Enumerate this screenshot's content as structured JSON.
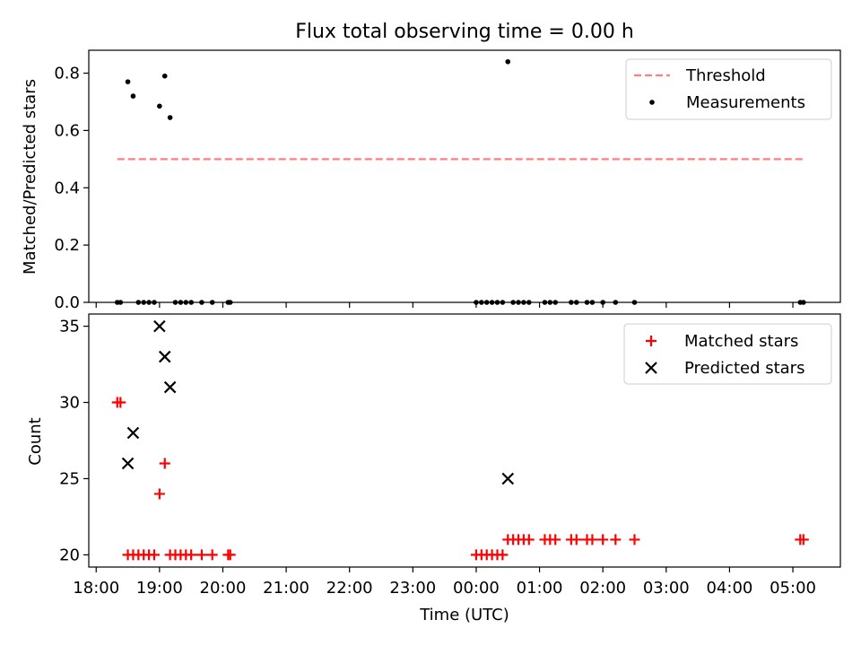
{
  "chart_data": [
    {
      "type": "scatter",
      "title": "Flux total observing time = 0.00 h",
      "xlabel": "",
      "ylabel": "Matched/Predicted stars",
      "xlim": [
        "17:53",
        "05:45"
      ],
      "ylim": [
        0,
        0.88
      ],
      "yticks": [
        0.0,
        0.2,
        0.4,
        0.6,
        0.8
      ],
      "ytick_labels": [
        "0.0",
        "0.2",
        "0.4",
        "0.6",
        "0.8"
      ],
      "grid": false,
      "legend_position": "top-right",
      "legend": [
        {
          "label": "Threshold",
          "style": "dashed-line",
          "color": "#ff7f7f"
        },
        {
          "label": "Measurements",
          "style": "dot",
          "color": "#000000"
        }
      ],
      "threshold": {
        "name": "Threshold",
        "y": 0.5,
        "x_start": "18:20",
        "x_end": "05:10",
        "color": "#ff7f7f"
      },
      "series": [
        {
          "name": "Measurements",
          "marker": "dot",
          "color": "#000000",
          "points": [
            {
              "x": "18:20",
              "y": 0.0
            },
            {
              "x": "18:23",
              "y": 0.0
            },
            {
              "x": "18:30",
              "y": 0.77
            },
            {
              "x": "18:35",
              "y": 0.72
            },
            {
              "x": "18:40",
              "y": 0.0
            },
            {
              "x": "18:45",
              "y": 0.0
            },
            {
              "x": "18:50",
              "y": 0.0
            },
            {
              "x": "18:55",
              "y": 0.0
            },
            {
              "x": "19:00",
              "y": 0.685
            },
            {
              "x": "19:05",
              "y": 0.79
            },
            {
              "x": "19:10",
              "y": 0.645
            },
            {
              "x": "19:15",
              "y": 0.0
            },
            {
              "x": "19:20",
              "y": 0.0
            },
            {
              "x": "19:25",
              "y": 0.0
            },
            {
              "x": "19:30",
              "y": 0.0
            },
            {
              "x": "19:40",
              "y": 0.0
            },
            {
              "x": "19:50",
              "y": 0.0
            },
            {
              "x": "20:05",
              "y": 0.0
            },
            {
              "x": "20:07",
              "y": 0.0
            },
            {
              "x": "00:00",
              "y": 0.0
            },
            {
              "x": "00:05",
              "y": 0.0
            },
            {
              "x": "00:10",
              "y": 0.0
            },
            {
              "x": "00:15",
              "y": 0.0
            },
            {
              "x": "00:20",
              "y": 0.0
            },
            {
              "x": "00:25",
              "y": 0.0
            },
            {
              "x": "00:30",
              "y": 0.84
            },
            {
              "x": "00:35",
              "y": 0.0
            },
            {
              "x": "00:40",
              "y": 0.0
            },
            {
              "x": "00:45",
              "y": 0.0
            },
            {
              "x": "00:50",
              "y": 0.0
            },
            {
              "x": "01:05",
              "y": 0.0
            },
            {
              "x": "01:10",
              "y": 0.0
            },
            {
              "x": "01:15",
              "y": 0.0
            },
            {
              "x": "01:30",
              "y": 0.0
            },
            {
              "x": "01:35",
              "y": 0.0
            },
            {
              "x": "01:45",
              "y": 0.0
            },
            {
              "x": "01:50",
              "y": 0.0
            },
            {
              "x": "02:00",
              "y": 0.0
            },
            {
              "x": "02:12",
              "y": 0.0
            },
            {
              "x": "02:30",
              "y": 0.0
            },
            {
              "x": "05:07",
              "y": 0.0
            },
            {
              "x": "05:10",
              "y": 0.0
            }
          ]
        }
      ]
    },
    {
      "type": "scatter",
      "title": "",
      "xlabel": "Time (UTC)",
      "ylabel": "Count",
      "xlim": [
        "17:53",
        "05:45"
      ],
      "ylim": [
        19.2,
        35.8
      ],
      "yticks": [
        20,
        25,
        30,
        35
      ],
      "ytick_labels": [
        "20",
        "25",
        "30",
        "35"
      ],
      "xticks": [
        "18:00",
        "19:00",
        "20:00",
        "21:00",
        "22:00",
        "23:00",
        "00:00",
        "01:00",
        "02:00",
        "03:00",
        "04:00",
        "05:00"
      ],
      "grid": false,
      "legend_position": "top-right",
      "legend": [
        {
          "label": "Matched stars",
          "style": "plus",
          "color": "#ff0000"
        },
        {
          "label": "Predicted stars",
          "style": "cross",
          "color": "#000000"
        }
      ],
      "series": [
        {
          "name": "Matched stars",
          "marker": "plus",
          "color": "#ff0000",
          "points": [
            {
              "x": "18:20",
              "y": 30
            },
            {
              "x": "18:23",
              "y": 30
            },
            {
              "x": "18:30",
              "y": 20
            },
            {
              "x": "18:35",
              "y": 20
            },
            {
              "x": "18:40",
              "y": 20
            },
            {
              "x": "18:45",
              "y": 20
            },
            {
              "x": "18:50",
              "y": 20
            },
            {
              "x": "18:55",
              "y": 20
            },
            {
              "x": "19:00",
              "y": 24
            },
            {
              "x": "19:05",
              "y": 26
            },
            {
              "x": "19:10",
              "y": 20
            },
            {
              "x": "19:15",
              "y": 20
            },
            {
              "x": "19:20",
              "y": 20
            },
            {
              "x": "19:25",
              "y": 20
            },
            {
              "x": "19:30",
              "y": 20
            },
            {
              "x": "19:40",
              "y": 20
            },
            {
              "x": "19:50",
              "y": 20
            },
            {
              "x": "20:05",
              "y": 20
            },
            {
              "x": "20:07",
              "y": 20
            },
            {
              "x": "00:00",
              "y": 20
            },
            {
              "x": "00:05",
              "y": 20
            },
            {
              "x": "00:10",
              "y": 20
            },
            {
              "x": "00:15",
              "y": 20
            },
            {
              "x": "00:20",
              "y": 20
            },
            {
              "x": "00:25",
              "y": 20
            },
            {
              "x": "00:30",
              "y": 21
            },
            {
              "x": "00:35",
              "y": 21
            },
            {
              "x": "00:40",
              "y": 21
            },
            {
              "x": "00:45",
              "y": 21
            },
            {
              "x": "00:50",
              "y": 21
            },
            {
              "x": "01:05",
              "y": 21
            },
            {
              "x": "01:10",
              "y": 21
            },
            {
              "x": "01:15",
              "y": 21
            },
            {
              "x": "01:30",
              "y": 21
            },
            {
              "x": "01:35",
              "y": 21
            },
            {
              "x": "01:45",
              "y": 21
            },
            {
              "x": "01:50",
              "y": 21
            },
            {
              "x": "02:00",
              "y": 21
            },
            {
              "x": "02:12",
              "y": 21
            },
            {
              "x": "02:30",
              "y": 21
            },
            {
              "x": "05:07",
              "y": 21
            },
            {
              "x": "05:10",
              "y": 21
            }
          ]
        },
        {
          "name": "Predicted stars",
          "marker": "cross",
          "color": "#000000",
          "points": [
            {
              "x": "18:30",
              "y": 26
            },
            {
              "x": "18:35",
              "y": 28
            },
            {
              "x": "19:00",
              "y": 35
            },
            {
              "x": "19:05",
              "y": 33
            },
            {
              "x": "19:10",
              "y": 31
            },
            {
              "x": "00:30",
              "y": 25
            }
          ]
        }
      ]
    }
  ]
}
